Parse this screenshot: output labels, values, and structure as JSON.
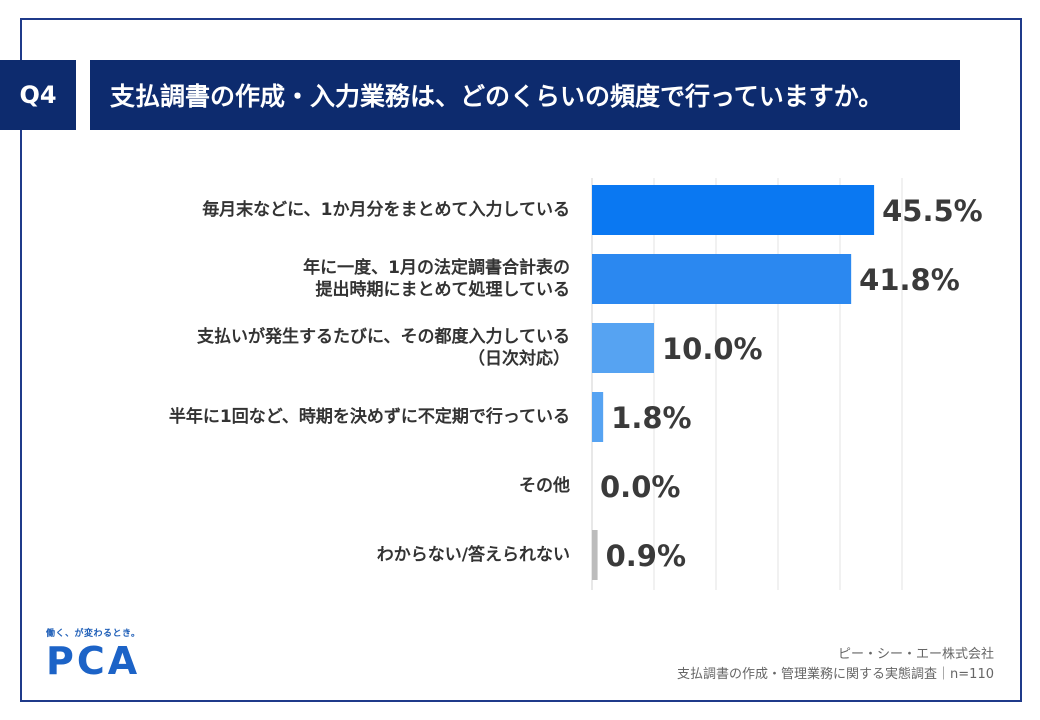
{
  "question": {
    "badge": "Q4",
    "text": "支払調書の作成・入力業務は、どのくらいの頻度で行っていますか。"
  },
  "chart_data": {
    "type": "bar",
    "orientation": "horizontal",
    "categories": [
      [
        "毎月末などに、1か月分をまとめて入力している"
      ],
      [
        "年に一度、1月の法定調書合計表の",
        "提出時期にまとめて処理している"
      ],
      [
        "支払いが発生するたびに、その都度入力している",
        "（日次対応）"
      ],
      [
        "半年に1回など、時期を決めずに不定期で行っている"
      ],
      [
        "その他"
      ],
      [
        "わからない/答えられない"
      ]
    ],
    "values": [
      45.5,
      41.8,
      10.0,
      1.8,
      0.0,
      0.9
    ],
    "value_labels": [
      "45.5%",
      "41.8%",
      "10.0%",
      "1.8%",
      "0.0%",
      "0.9%"
    ],
    "bar_colors": [
      "#0a78f2",
      "#2b88f0",
      "#56a3f2",
      "#56a3f2",
      "#56a3f2",
      "#bcbcbc"
    ],
    "xlim": [
      0,
      50
    ],
    "grid": true,
    "title": "",
    "xlabel": "",
    "ylabel": ""
  },
  "brand": {
    "tagline": "働く、が変わるとき。",
    "logo": "PCA"
  },
  "footer": {
    "company": "ピー・シー・エー株式会社",
    "survey": "支払調書の作成・管理業務に関する実態調査｜n=110"
  }
}
